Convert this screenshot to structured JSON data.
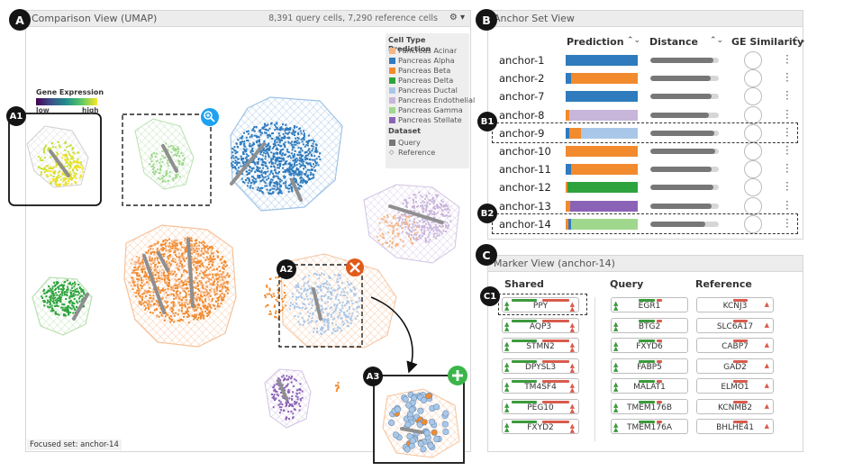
{
  "labels": {
    "A": "A",
    "A1": "A1",
    "A2": "A2",
    "A3": "A3",
    "B": "B",
    "B1": "B1",
    "B2": "B2",
    "C": "C",
    "C1": "C1"
  },
  "comparison": {
    "title": "Comparison View (UMAP)",
    "summary": "8,391 query cells, 7,290 reference cells",
    "settings_symbol": "⚙ ▾",
    "focused": "Focused set: anchor-14",
    "gene_title": "Gene Expression",
    "gene_low": "low",
    "gene_high": "high",
    "legend_title": "Cell Type Prediction",
    "legend_items": [
      {
        "label": "Pancreas Acinar",
        "color": "#f5b686"
      },
      {
        "label": "Pancreas Alpha",
        "color": "#2f7bbd"
      },
      {
        "label": "Pancreas Beta",
        "color": "#f28a2e"
      },
      {
        "label": "Pancreas Delta",
        "color": "#2ea33d"
      },
      {
        "label": "Pancreas Ductal",
        "color": "#a9c7e8"
      },
      {
        "label": "Pancreas Endothelial",
        "color": "#c8b5da"
      },
      {
        "label": "Pancreas Gamma",
        "color": "#9fd88d"
      },
      {
        "label": "Pancreas Stellate",
        "color": "#8a63b6"
      }
    ],
    "dataset_title": "Dataset",
    "dataset_query": "Query",
    "dataset_ref": "Reference"
  },
  "anchor": {
    "title": "Anchor Set View",
    "col_prediction": "Prediction",
    "col_distance": "Distance",
    "col_similarity": "GE Similarity",
    "sort_symbol": "⌃⌄",
    "rows": [
      {
        "name": "anchor-1",
        "segments": [
          {
            "c": "#2f7bbd",
            "v": 1
          }
        ],
        "distance": 0.92
      },
      {
        "name": "anchor-2",
        "segments": [
          {
            "c": "#2f7bbd",
            "v": 0.08
          },
          {
            "c": "#f28a2e",
            "v": 0.92
          }
        ],
        "distance": 0.88
      },
      {
        "name": "anchor-7",
        "segments": [
          {
            "c": "#2f7bbd",
            "v": 1
          }
        ],
        "distance": 0.9
      },
      {
        "name": "anchor-8",
        "segments": [
          {
            "c": "#f28a2e",
            "v": 0.05
          },
          {
            "c": "#c8b5da",
            "v": 0.95
          }
        ],
        "distance": 0.86
      },
      {
        "name": "anchor-9",
        "segments": [
          {
            "c": "#2f7bbd",
            "v": 0.05
          },
          {
            "c": "#f28a2e",
            "v": 0.16
          },
          {
            "c": "#a9c7e8",
            "v": 0.79
          }
        ],
        "distance": 0.93
      },
      {
        "name": "anchor-10",
        "segments": [
          {
            "c": "#f28a2e",
            "v": 1
          }
        ],
        "distance": 0.95
      },
      {
        "name": "anchor-11",
        "segments": [
          {
            "c": "#2f7bbd",
            "v": 0.08
          },
          {
            "c": "#f28a2e",
            "v": 0.92
          }
        ],
        "distance": 0.9
      },
      {
        "name": "anchor-12",
        "segments": [
          {
            "c": "#f28a2e",
            "v": 0.03
          },
          {
            "c": "#2ea33d",
            "v": 0.97
          }
        ],
        "distance": 0.92
      },
      {
        "name": "anchor-13",
        "segments": [
          {
            "c": "#f28a2e",
            "v": 0.06
          },
          {
            "c": "#8a63b6",
            "v": 0.94
          }
        ],
        "distance": 0.89
      },
      {
        "name": "anchor-14",
        "segments": [
          {
            "c": "#f28a2e",
            "v": 0.04
          },
          {
            "c": "#2f7bbd",
            "v": 0.04
          },
          {
            "c": "#9fd88d",
            "v": 0.92
          }
        ],
        "distance": 0.8
      }
    ]
  },
  "marker": {
    "title": "Marker View (anchor-14)",
    "col_shared": "Shared",
    "col_query": "Query",
    "col_reference": "Reference",
    "shared": [
      "PPY",
      "AQP3",
      "STMN2",
      "DPYSL3",
      "TM4SF4",
      "PEG10",
      "FXYD2"
    ],
    "query": [
      "EGR1",
      "BTG2",
      "FXYD6",
      "FABP5",
      "MALAT1",
      "TMEM176B",
      "TMEM176A"
    ],
    "reference": [
      "KCNJ3",
      "SLC6A17",
      "CABP7",
      "GAD2",
      "ELMO1",
      "KCNMB2",
      "BHLHE41"
    ]
  }
}
